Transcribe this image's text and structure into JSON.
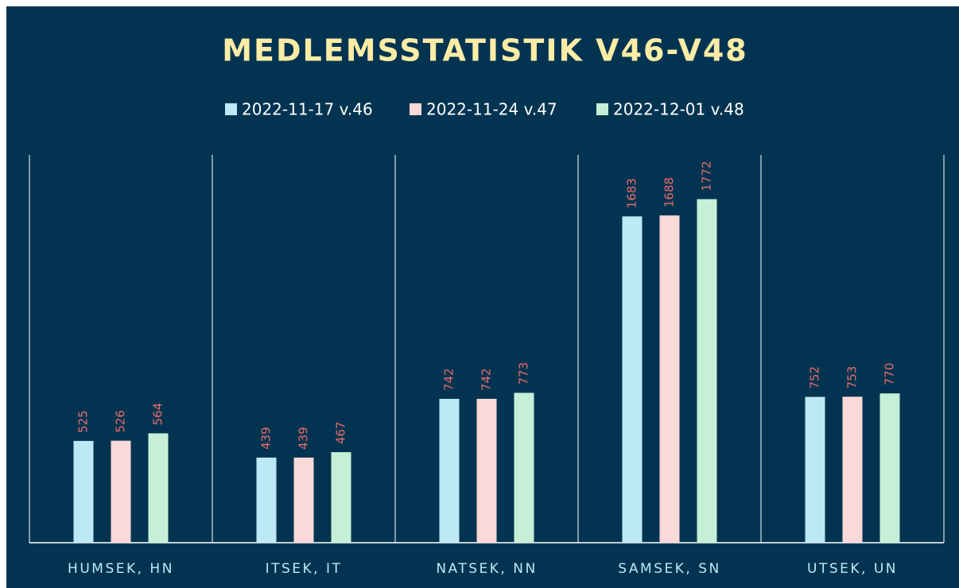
{
  "chart_data": {
    "type": "bar",
    "title": "MEDLEMSSTATISTIK V46-V48",
    "categories": [
      "HUMSEK, HN",
      "ITSEK, IT",
      "NATSEK, NN",
      "SAMSEK, SN",
      "UTSEK, UN"
    ],
    "series": [
      {
        "name": "2022-11-17 v.46",
        "color": "#bde9f6",
        "values": [
          525,
          439,
          742,
          1683,
          752
        ]
      },
      {
        "name": "2022-11-24 v.47",
        "color": "#fbd9d9",
        "values": [
          526,
          439,
          742,
          1688,
          753
        ]
      },
      {
        "name": "2022-12-01 v.48",
        "color": "#c6efd8",
        "values": [
          564,
          467,
          773,
          1772,
          770
        ]
      }
    ],
    "ylim": [
      0,
      2000
    ]
  }
}
